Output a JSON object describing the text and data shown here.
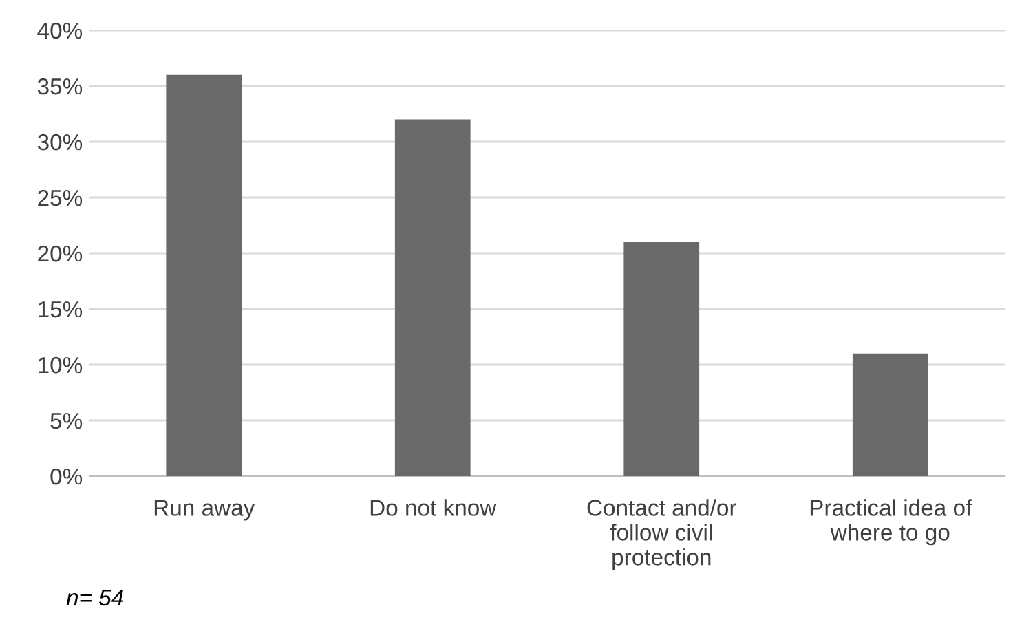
{
  "chart_data": {
    "type": "bar",
    "categories": [
      "Run away",
      "Do not know",
      "Contact and/or\nfollow civil\nprotection",
      "Practical idea of\nwhere to go"
    ],
    "values": [
      36,
      32,
      21,
      11
    ],
    "color": "#696969",
    "ylim": [
      0,
      40
    ],
    "yticks": [
      {
        "value": 0,
        "label": "0%"
      },
      {
        "value": 5,
        "label": "5%"
      },
      {
        "value": 10,
        "label": "10%"
      },
      {
        "value": 15,
        "label": "15%"
      },
      {
        "value": 20,
        "label": "20%"
      },
      {
        "value": 25,
        "label": "25%"
      },
      {
        "value": 30,
        "label": "30%"
      },
      {
        "value": 35,
        "label": "35%"
      },
      {
        "value": 40,
        "label": "40%"
      }
    ],
    "grid": "y",
    "annotations": [
      "n= 54"
    ]
  }
}
